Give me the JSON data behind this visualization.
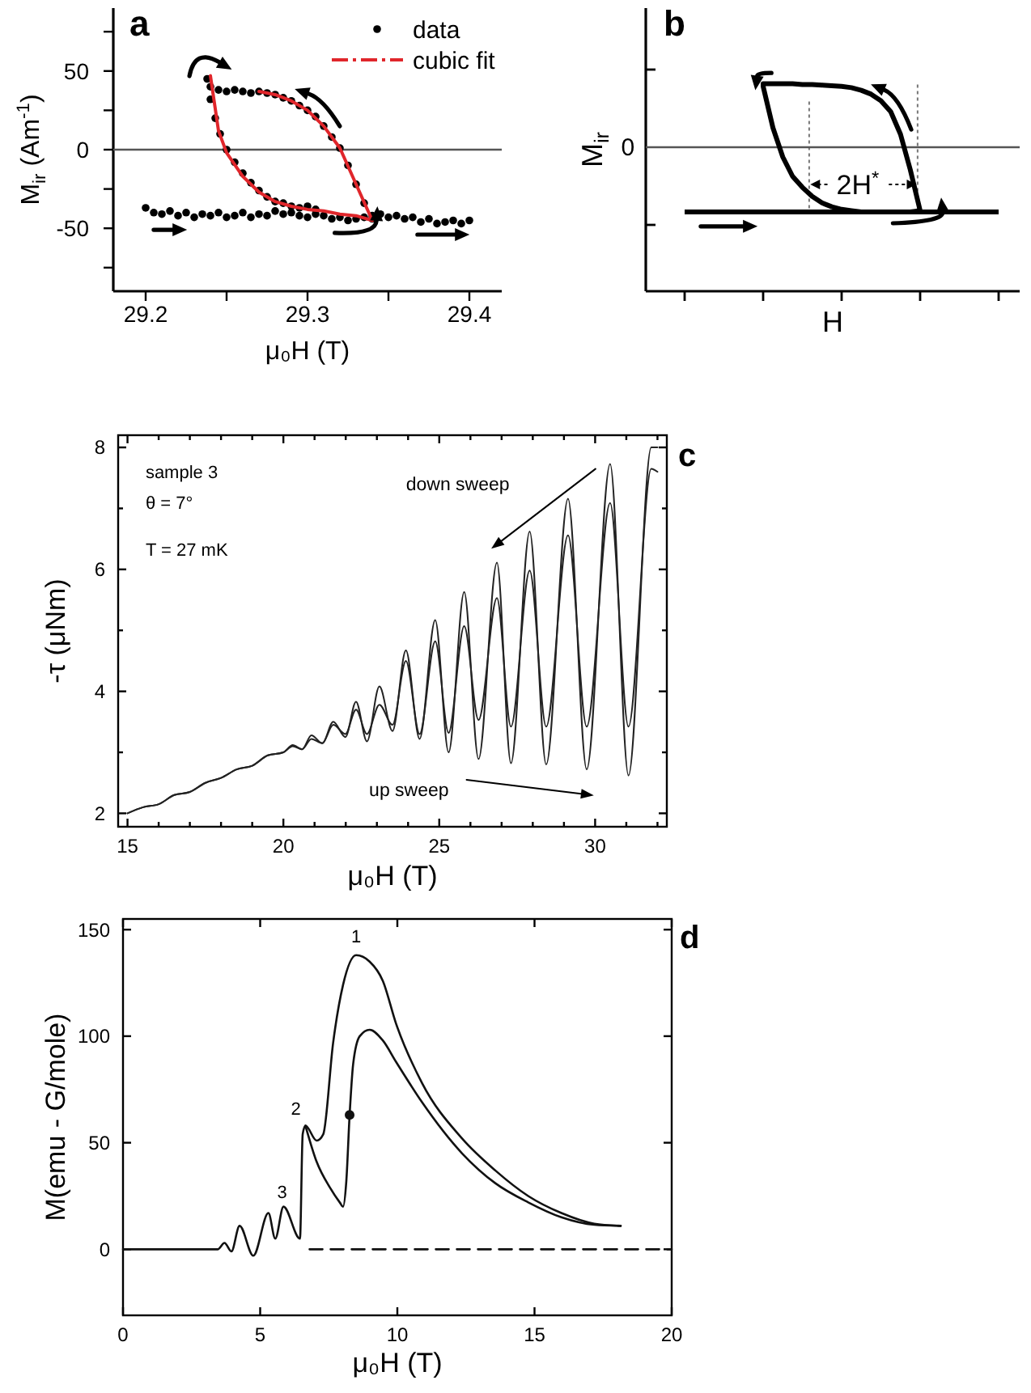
{
  "chart_data": [
    {
      "type": "line",
      "title": "a",
      "xlabel": "μ₀H (T)",
      "ylabel": "M$_{ir}$  (Am$^{-1}$)",
      "xlim": [
        29.18,
        29.42
      ],
      "ylim": [
        -90,
        90
      ],
      "xticks": [
        29.2,
        {
          "value": 29.25,
          "label": null
        },
        29.3,
        {
          "value": 29.35,
          "label": null
        },
        29.4
      ],
      "yticks": [
        {
          "value": -75,
          "label": null
        },
        -50,
        {
          "value": -25,
          "label": null
        },
        0,
        {
          "value": 25,
          "label": null
        },
        50,
        {
          "value": 75,
          "label": null
        }
      ],
      "legend": "top right",
      "ref_lines": [
        {
          "axis": "y",
          "value": 0,
          "color": "#555555"
        }
      ],
      "series": [
        {
          "name": "data",
          "type": "scatter",
          "marker": "circle",
          "color": "#000000",
          "x": [
            29.2,
            29.205,
            29.21,
            29.215,
            29.22,
            29.225,
            29.23,
            29.235,
            29.24,
            29.245,
            29.25,
            29.255,
            29.26,
            29.265,
            29.27,
            29.275,
            29.28,
            29.285,
            29.29,
            29.295,
            29.3,
            29.305,
            29.31,
            29.315,
            29.32,
            29.325,
            29.33,
            29.335,
            29.34,
            29.345,
            29.35,
            29.355,
            29.36,
            29.365,
            29.37,
            29.375,
            29.38,
            29.385,
            29.39,
            29.395,
            29.4,
            29.24,
            29.245,
            29.25,
            29.255,
            29.26,
            29.265,
            29.27,
            29.275,
            29.28,
            29.285,
            29.29,
            29.295,
            29.3,
            29.305,
            29.31,
            29.315,
            29.32,
            29.325,
            29.33,
            29.335,
            29.34,
            29.238,
            29.24,
            29.243,
            29.246,
            29.25,
            29.255,
            29.26,
            29.265,
            29.27,
            29.275,
            29.28,
            29.285,
            29.29,
            29.295,
            29.3,
            29.305
          ],
          "values": [
            -37,
            -40,
            -41,
            -39,
            -42,
            -40,
            -43,
            -41,
            -42,
            -40,
            -43,
            -42,
            -40,
            -43,
            -41,
            -42,
            -39,
            -41,
            -40,
            -42,
            -43,
            -41,
            -42,
            -44,
            -43,
            -45,
            -44,
            -43,
            -42,
            -41,
            -43,
            -42,
            -44,
            -43,
            -46,
            -44,
            -47,
            -46,
            -45,
            -47,
            -45,
            40,
            38,
            37,
            38,
            37,
            36,
            37,
            36,
            35,
            33,
            31,
            28,
            25,
            21,
            15,
            8,
            1,
            -10,
            -22,
            -34,
            -44,
            45,
            32,
            20,
            10,
            0,
            -8,
            -15,
            -21,
            -26,
            -30,
            -33,
            -34,
            -36,
            -37,
            -36,
            -38
          ]
        },
        {
          "name": "cubic fit",
          "color": "#e0262b",
          "x": [
            29.27,
            29.28,
            29.29,
            29.3,
            29.31,
            29.32,
            29.33,
            29.34,
            29.33,
            29.32,
            29.31,
            29.3,
            29.29,
            29.28,
            29.27,
            29.26,
            29.25,
            29.245,
            29.24
          ],
          "values": [
            37,
            35,
            31,
            25,
            15,
            1,
            -22,
            -45,
            -42,
            -41,
            -39,
            -38,
            -36,
            -33,
            -27,
            -17,
            -2,
            12,
            47
          ]
        }
      ]
    },
    {
      "type": "other",
      "title": "b",
      "xlabel": "H",
      "ylabel": "M$_{ir}$",
      "annotations": [
        "0",
        "2H$^{*}$"
      ]
    },
    {
      "type": "line",
      "title": "c",
      "xlabel": "μ₀H (T)",
      "ylabel": "-τ (μNm)",
      "xlim": [
        14.7,
        32.3
      ],
      "ylim": [
        1.78,
        8.2
      ],
      "xticks": [
        15,
        {
          "value": 16,
          "label": null
        },
        {
          "value": 17,
          "label": null
        },
        {
          "value": 18,
          "label": null
        },
        {
          "value": 19,
          "label": null
        },
        20,
        {
          "value": 21,
          "label": null
        },
        {
          "value": 22,
          "label": null
        },
        {
          "value": 23,
          "label": null
        },
        {
          "value": 24,
          "label": null
        },
        25,
        {
          "value": 26,
          "label": null
        },
        {
          "value": 27,
          "label": null
        },
        {
          "value": 28,
          "label": null
        },
        {
          "value": 29,
          "label": null
        },
        30,
        {
          "value": 31,
          "label": null
        },
        {
          "value": 32,
          "label": null
        }
      ],
      "yticks": [
        2,
        {
          "value": 3,
          "label": null
        },
        4,
        {
          "value": 5,
          "label": null
        },
        6,
        {
          "value": 7,
          "label": null
        },
        8
      ],
      "annotations": [
        "sample 3",
        "θ = 7°",
        "T = 27 mK",
        "down sweep",
        "up sweep"
      ],
      "x": [
        15,
        15.5,
        16,
        16.5,
        17,
        17.5,
        18,
        18.5,
        19,
        19.5,
        20,
        20.3,
        20.6,
        20.9,
        21.25,
        21.6,
        21.99,
        22.33,
        22.68,
        23.08,
        23.5,
        23.93,
        24.37,
        24.87,
        25.3,
        25.8,
        26.26,
        26.85,
        27.3,
        27.9,
        28.43,
        29.13,
        29.73,
        30.48,
        31.07,
        31.8,
        32.0
      ],
      "series": [
        {
          "color": "#222222",
          "values": [
            2.0,
            2.1,
            2.15,
            2.3,
            2.35,
            2.5,
            2.58,
            2.72,
            2.78,
            2.95,
            3.0,
            3.12,
            3.05,
            3.28,
            3.15,
            3.5,
            3.25,
            3.83,
            3.18,
            4.08,
            3.35,
            4.67,
            3.22,
            5.17,
            3.0,
            5.63,
            2.89,
            6.11,
            2.82,
            6.62,
            2.8,
            7.16,
            2.72,
            7.73,
            2.62,
            8.0,
            8.0
          ]
        },
        {
          "color": "#222222",
          "values": [
            2.0,
            2.1,
            2.15,
            2.3,
            2.35,
            2.5,
            2.58,
            2.72,
            2.78,
            2.95,
            3.0,
            3.1,
            3.05,
            3.22,
            3.15,
            3.45,
            3.3,
            3.7,
            3.3,
            3.78,
            3.45,
            4.5,
            3.3,
            4.82,
            3.32,
            5.07,
            3.53,
            5.53,
            3.42,
            5.98,
            3.42,
            6.56,
            3.42,
            7.09,
            3.42,
            7.65,
            7.6
          ]
        }
      ]
    },
    {
      "type": "line",
      "title": "d",
      "xlabel": "μ₀H (T)",
      "ylabel": "M(emu - G/mole)",
      "xlim": [
        0,
        20
      ],
      "ylim": [
        -31,
        155
      ],
      "xticks": [
        0,
        5,
        10,
        15,
        20
      ],
      "yticks": [
        0,
        50,
        100,
        150
      ],
      "annotations": [
        "1",
        "2",
        "3"
      ],
      "series": [
        {
          "color": "#111111",
          "x": [
            0,
            3.45,
            3.7,
            3.95,
            4.25,
            4.75,
            5.3,
            5.55,
            5.85,
            6.45,
            6.55,
            6.65,
            7.06,
            7.3,
            7.66,
            8.02,
            8.5,
            8.99,
            9.47,
            9.95,
            10.9,
            12.36,
            13.57,
            14.77,
            15.98,
            17.18,
            18.14
          ],
          "values": [
            0,
            0,
            3,
            -1,
            11,
            -3,
            17,
            5,
            20,
            5,
            54,
            58,
            51,
            54,
            97,
            124,
            138,
            135,
            126,
            106,
            78,
            52,
            37,
            25,
            17,
            12,
            11
          ]
        },
        {
          "color": "#111111",
          "x": [
            6.65,
            7.06,
            7.54,
            7.9,
            8.02,
            8.14,
            8.26,
            8.39,
            8.63,
            8.99,
            9.47,
            9.95,
            10.9,
            12.36,
            13.57,
            14.77,
            15.98,
            17.18,
            18.14
          ],
          "values": [
            58,
            41,
            29,
            22,
            20,
            32,
            63,
            87,
            100,
            103,
            98,
            88,
            69,
            45,
            31,
            22,
            15,
            11.5,
            11
          ]
        },
        {
          "color": "#111111",
          "line_style": "dashed",
          "x": [
            6.8,
            20
          ],
          "values": [
            0,
            0
          ]
        },
        {
          "color": "#111111",
          "type": "scatter",
          "marker": "circle",
          "x": [
            8.26
          ],
          "values": [
            63
          ]
        }
      ]
    }
  ]
}
